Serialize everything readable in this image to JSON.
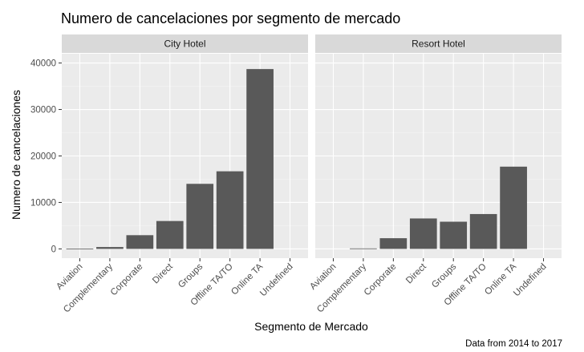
{
  "chart_data": {
    "type": "bar",
    "title": "Numero de cancelaciones por segmento de mercado",
    "xlabel": "Segmento de Mercado",
    "ylabel": "Numero de cancelaciones",
    "caption": "Data from 2014 to 2017",
    "ylim": [
      -2000,
      42000
    ],
    "yticks": [
      0,
      10000,
      20000,
      30000,
      40000
    ],
    "categories": [
      "Aviation",
      "Complementary",
      "Corporate",
      "Direct",
      "Groups",
      "Offline TA/TO",
      "Online TA",
      "Undefined"
    ],
    "panels": [
      {
        "name": "City Hotel",
        "values": [
          52,
          400,
          2950,
          6000,
          14000,
          16700,
          38700,
          0
        ]
      },
      {
        "name": "Resort Hotel",
        "values": [
          0,
          100,
          2300,
          6550,
          5850,
          7500,
          17700,
          0
        ]
      }
    ],
    "grid": true,
    "legend": "none",
    "colors": {
      "bar": "#595959",
      "panel_bg": "#ebebeb",
      "strip_bg": "#d9d9d9",
      "grid_major": "#ffffff"
    }
  }
}
